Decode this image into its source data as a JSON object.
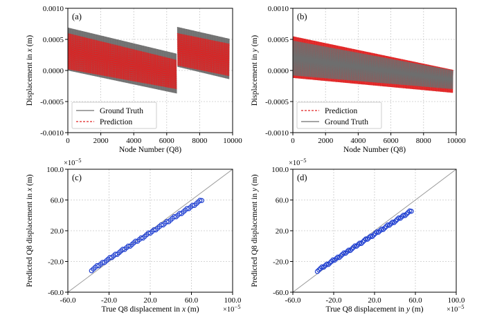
{
  "colors": {
    "ground_truth": "#6e6e6e",
    "prediction": "#e02020",
    "scatter": "#1f3fd0",
    "diagonal": "#9a9a9a",
    "grid": "#c8c8c8"
  },
  "chart_data": [
    {
      "panel": "(a)",
      "type": "line",
      "xlabel_pre": "Node Number (Q8)",
      "ylabel_pre": "Displacement in ",
      "ylabel_var": "x",
      "ylabel_post": " (m)",
      "xlim": [
        0,
        10000
      ],
      "ylim": [
        -0.001,
        0.001
      ],
      "xticks": [
        "0",
        "2000",
        "4000",
        "6000",
        "8000",
        "10000"
      ],
      "yticks": [
        "-0.0010",
        "-0.0005",
        "0.0000",
        "0.0005",
        "0.0010"
      ],
      "grid": true,
      "legend_position": "lower-left",
      "legend": [
        "Ground Truth",
        "Prediction"
      ],
      "series": [
        {
          "name": "Ground Truth",
          "style": "solid",
          "segments": [
            {
              "x": [
                0,
                6600
              ],
              "upper": [
                0.00069,
                0.00027
              ],
              "lower": [
                0.0,
                -0.00037
              ]
            },
            {
              "x": [
                6650,
                9800
              ],
              "upper": [
                0.0007,
                0.00051
              ],
              "lower": [
                6e-05,
                -0.00014
              ]
            }
          ]
        },
        {
          "name": "Prediction",
          "style": "dashed",
          "segments": [
            {
              "x": [
                0,
                6600
              ],
              "upper": [
                0.0006,
                0.00017
              ],
              "lower": [
                2e-05,
                -0.0003
              ]
            },
            {
              "x": [
                6650,
                9800
              ],
              "upper": [
                0.0006,
                0.00043
              ],
              "lower": [
                8e-05,
                -9e-05
              ]
            }
          ]
        }
      ]
    },
    {
      "panel": "(b)",
      "type": "line",
      "xlabel_pre": "Node Number (Q8)",
      "ylabel_pre": "Displacement in ",
      "ylabel_var": "y",
      "ylabel_post": " (m)",
      "xlim": [
        0,
        10000
      ],
      "ylim": [
        -0.001,
        0.001
      ],
      "xticks": [
        "0",
        "2000",
        "4000",
        "6000",
        "8000",
        "10000"
      ],
      "yticks": [
        "-0.0010",
        "-0.0005",
        "0.0000",
        "0.0005",
        "0.0010"
      ],
      "grid": true,
      "legend_position": "lower-left",
      "legend": [
        "Prediction",
        "Ground Truth"
      ],
      "series": [
        {
          "name": "Prediction",
          "style": "dashed",
          "segments": [
            {
              "x": [
                0,
                9800
              ],
              "upper": [
                0.00055,
                1e-05
              ],
              "lower": [
                -0.00012,
                -0.00036
              ]
            }
          ]
        },
        {
          "name": "Ground Truth",
          "style": "solid",
          "segments": [
            {
              "x": [
                0,
                9800
              ],
              "upper": [
                0.00048,
                0.0
              ],
              "lower": [
                -8e-05,
                -0.0003
              ]
            }
          ]
        }
      ]
    },
    {
      "panel": "(c)",
      "type": "scatter",
      "xlabel_pre": "True Q8 displacement in ",
      "xlabel_var": "x",
      "xlabel_post": " (m)",
      "ylabel_pre": "Predicted Q8 displacement in ",
      "ylabel_var": "x",
      "ylabel_post": " (m)",
      "xlim": [
        -60,
        100
      ],
      "ylim": [
        -60,
        100
      ],
      "ticks": [
        "-60.0",
        "-20.0",
        "20.0",
        "60.0",
        "100.0"
      ],
      "multiplier": "×10",
      "multiplier_exp": "−5",
      "grid": true,
      "diagonal": true,
      "points_from": [
        -37,
        -31
      ],
      "points_to": [
        70,
        60
      ]
    },
    {
      "panel": "(d)",
      "type": "scatter",
      "xlabel_pre": "True Q8 displacement in ",
      "xlabel_var": "y",
      "xlabel_post": " (m)",
      "ylabel_pre": "Predicted Q8 displacement in ",
      "ylabel_var": "y",
      "ylabel_post": " (m)",
      "xlim": [
        -60,
        100
      ],
      "ylim": [
        -60,
        100
      ],
      "ticks": [
        "-60.0",
        "-20.0",
        "20.0",
        "60.0",
        "100.0"
      ],
      "multiplier": "×10",
      "multiplier_exp": "−5",
      "grid": true,
      "diagonal": true,
      "points_from": [
        -36,
        -32
      ],
      "points_to": [
        56,
        46
      ]
    }
  ]
}
